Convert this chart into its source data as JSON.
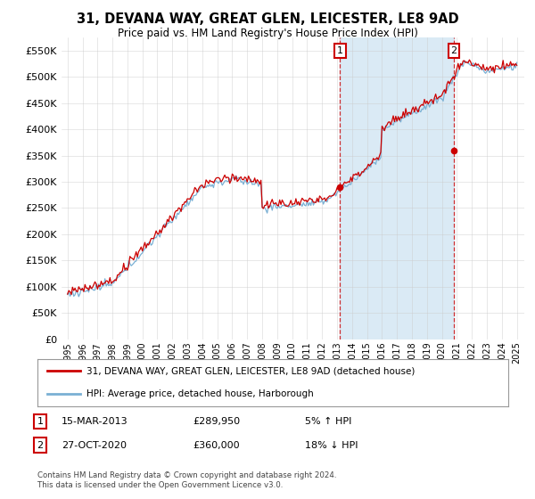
{
  "title": "31, DEVANA WAY, GREAT GLEN, LEICESTER, LE8 9AD",
  "subtitle": "Price paid vs. HM Land Registry's House Price Index (HPI)",
  "ytick_values": [
    0,
    50000,
    100000,
    150000,
    200000,
    250000,
    300000,
    350000,
    400000,
    450000,
    500000,
    550000
  ],
  "ylim": [
    0,
    575000
  ],
  "x_start_year": 1995,
  "x_end_year": 2025,
  "hpi_color": "#7ab0d4",
  "hpi_fill_color": "#daeaf5",
  "price_color": "#cc0000",
  "marker1_date": "15-MAR-2013",
  "marker1_price": 289950,
  "marker1_x": 2013.2,
  "marker1_label": "1",
  "marker2_date": "27-OCT-2020",
  "marker2_price": 360000,
  "marker2_x": 2020.8,
  "marker2_label": "2",
  "legend_line1": "31, DEVANA WAY, GREAT GLEN, LEICESTER, LE8 9AD (detached house)",
  "legend_line2": "HPI: Average price, detached house, Harborough",
  "footer": "Contains HM Land Registry data © Crown copyright and database right 2024.\nThis data is licensed under the Open Government Licence v3.0.",
  "background_color": "#ffffff",
  "grid_color": "#cccccc"
}
